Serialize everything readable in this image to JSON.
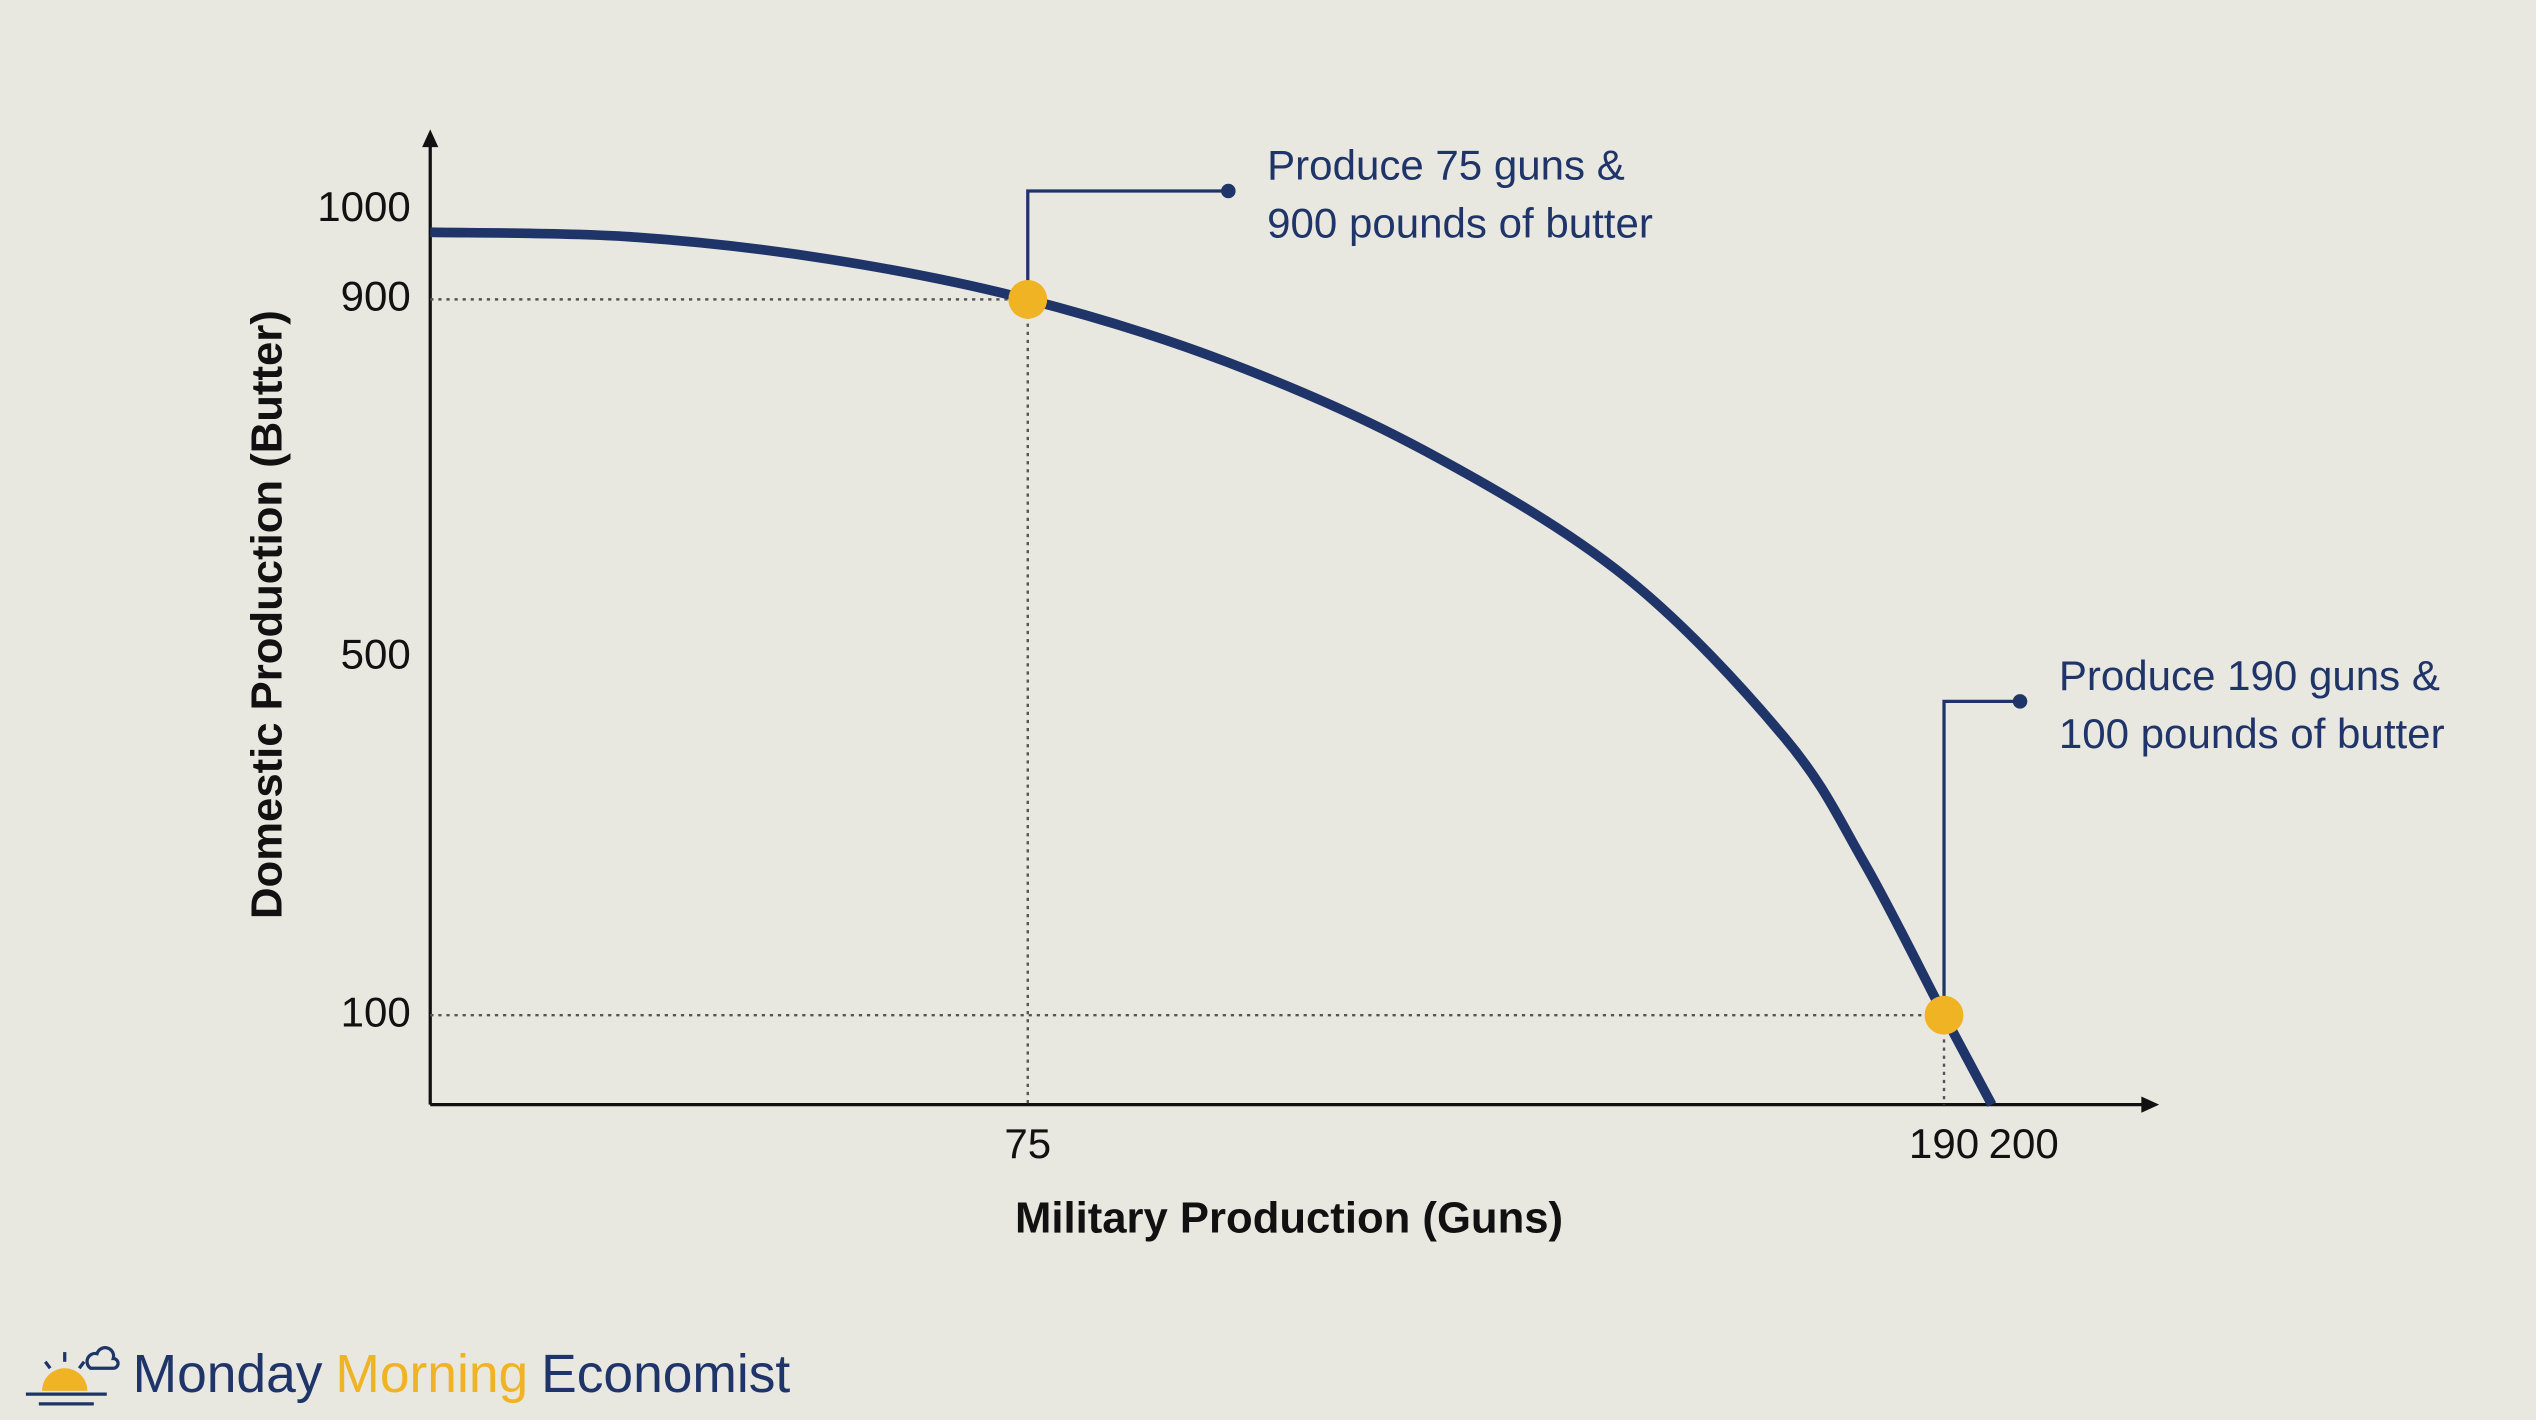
{
  "chart_data": {
    "type": "line",
    "xlabel": "Military Production (Guns)",
    "ylabel": "Domestic Production (Butter)",
    "xlim": [
      0,
      217
    ],
    "ylim": [
      0,
      1090
    ],
    "xticks": [
      75,
      190,
      200
    ],
    "yticks": [
      100,
      500,
      900,
      1000
    ],
    "series": [
      {
        "color": "#1f3468",
        "x": [
          0,
          25,
          50,
          75,
          100,
          125,
          150,
          170,
          180,
          190,
          196
        ],
        "values": [
          975,
          970,
          945,
          900,
          830,
          730,
          590,
          410,
          270,
          100,
          0
        ]
      }
    ],
    "points": [
      {
        "x": 75,
        "y": 900,
        "color": "#f0b323",
        "text": [
          "Produce 75 guns &",
          "900 pounds of butter"
        ]
      },
      {
        "x": 190,
        "y": 100,
        "color": "#f0b323",
        "text": [
          "Produce 190 guns &",
          "100 pounds of butter"
        ]
      }
    ]
  },
  "footer": {
    "brand": [
      "Monday",
      "Morning",
      "Economist"
    ]
  }
}
